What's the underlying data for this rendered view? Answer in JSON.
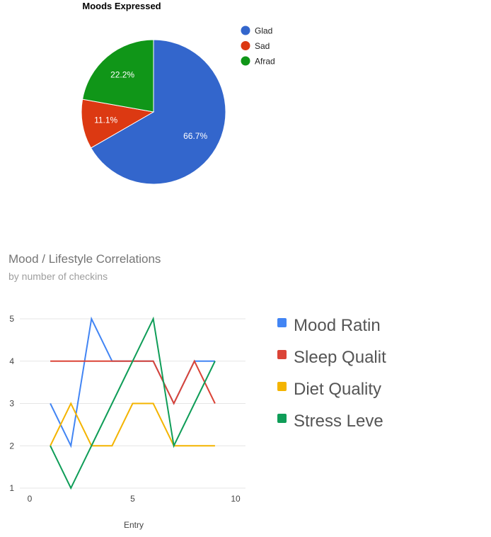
{
  "colors": {
    "glad": "#3366cc",
    "sad": "#dc3912",
    "afraid": "#109618",
    "mood_rating": "#4285f4",
    "sleep_quality": "#db4437",
    "diet_quality": "#f4b400",
    "stress_level": "#0f9d58",
    "gridline": "#e5e5e5",
    "axis_text": "#444444",
    "title_text": "#757575",
    "subtitle_text": "#9e9e9e"
  },
  "chart_data": [
    {
      "type": "pie",
      "title": "Moods Expressed",
      "legend_position": "right",
      "slices": [
        {
          "label": "Glad",
          "percent": 66.7,
          "percent_label": "66.7%",
          "color": "#3366cc"
        },
        {
          "label": "Sad",
          "percent": 11.1,
          "percent_label": "11.1%",
          "color": "#dc3912"
        },
        {
          "label": "Afrad",
          "percent": 22.2,
          "percent_label": "22.2%",
          "color": "#109618"
        }
      ]
    },
    {
      "type": "line",
      "title": "Mood / Lifestyle Correlations",
      "subtitle": "by number of checkins",
      "xlabel": "Entry",
      "ylabel": "",
      "xlim": [
        0,
        10
      ],
      "ylim": [
        1,
        5
      ],
      "x_ticks": [
        "0",
        "5",
        "10"
      ],
      "y_ticks": [
        "1",
        "2",
        "3",
        "4",
        "5"
      ],
      "grid": true,
      "legend_position": "right",
      "x": [
        1,
        2,
        3,
        4,
        5,
        6,
        7,
        8,
        9
      ],
      "series": [
        {
          "name": "Mood Ratin",
          "color": "#4285f4",
          "values": [
            3,
            2,
            5,
            4,
            4,
            4,
            3,
            4,
            4
          ]
        },
        {
          "name": "Sleep Qualit",
          "color": "#db4437",
          "values": [
            4,
            4,
            4,
            4,
            4,
            4,
            3,
            4,
            3
          ]
        },
        {
          "name": "Diet Quality",
          "color": "#f4b400",
          "values": [
            2,
            3,
            2,
            2,
            3,
            3,
            2,
            2,
            2
          ]
        },
        {
          "name": "Stress Leve",
          "color": "#0f9d58",
          "values": [
            2,
            1,
            2,
            3,
            4,
            5,
            2,
            3,
            4
          ]
        }
      ]
    }
  ]
}
